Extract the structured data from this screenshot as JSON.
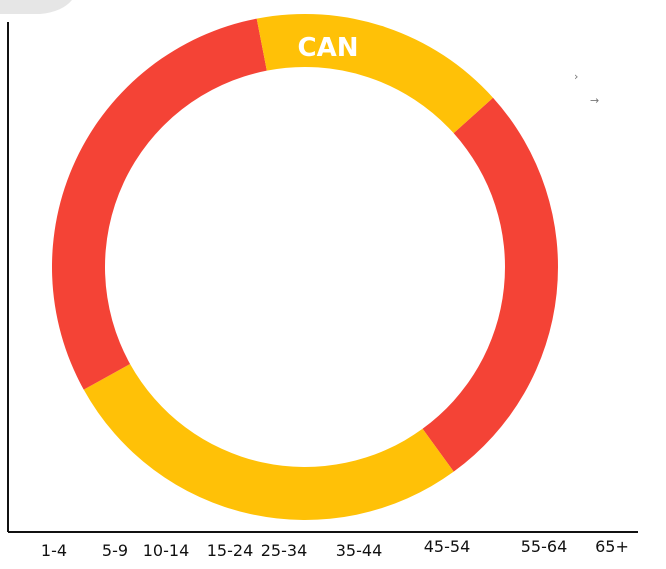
{
  "colors": {
    "red": "#F44336",
    "yellow": "#FFC107",
    "axis": "#111111",
    "decoration": "#e6e6e6"
  },
  "icons": {
    "chevron": "chevron-right-icon",
    "arrow": "arrow-right-icon"
  },
  "side_glyphs": {
    "chevron": "›",
    "arrow": "→"
  },
  "chart_data": {
    "type": "pie",
    "style": "donut",
    "ring_label": "CAN",
    "categories": [
      "1-4",
      "5-9",
      "10-14",
      "15-24",
      "25-34",
      "35-44",
      "45-54",
      "55-64",
      "65+"
    ],
    "segments": [
      {
        "color": "red",
        "start_deg": -42,
        "end_deg": 54,
        "percent": 26.7
      },
      {
        "color": "yellow",
        "start_deg": 54,
        "end_deg": 151,
        "percent": 26.9
      },
      {
        "color": "red",
        "start_deg": 151,
        "end_deg": 259,
        "percent": 30.0
      },
      {
        "color": "yellow",
        "start_deg": 259,
        "end_deg": 318,
        "percent": 16.4
      }
    ],
    "xlabel": "",
    "ylabel": "",
    "grid": false,
    "legend": "none"
  }
}
